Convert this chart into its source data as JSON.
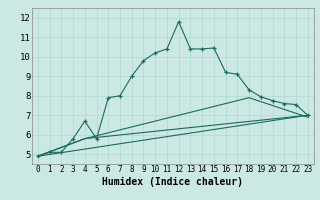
{
  "xlabel": "Humidex (Indice chaleur)",
  "bg_color": "#cce8e4",
  "grid_color": "#b0d8d0",
  "line_color": "#1a6b5a",
  "xlim": [
    -0.5,
    23.5
  ],
  "ylim": [
    4.5,
    12.5
  ],
  "xticks": [
    0,
    1,
    2,
    3,
    4,
    5,
    6,
    7,
    8,
    9,
    10,
    11,
    12,
    13,
    14,
    15,
    16,
    17,
    18,
    19,
    20,
    21,
    22,
    23
  ],
  "yticks": [
    5,
    6,
    7,
    8,
    9,
    10,
    11,
    12
  ],
  "series1": {
    "x": [
      0,
      1,
      2,
      3,
      4,
      5,
      6,
      7,
      8,
      9,
      10,
      11,
      12,
      13,
      14,
      15,
      16,
      17,
      18,
      19,
      20,
      21,
      22,
      23
    ],
    "y": [
      4.9,
      5.1,
      5.1,
      5.8,
      6.7,
      5.8,
      7.9,
      8.0,
      9.0,
      9.8,
      10.2,
      10.4,
      11.8,
      10.4,
      10.4,
      10.45,
      9.2,
      9.1,
      8.3,
      7.95,
      7.75,
      7.6,
      7.55,
      7.0
    ]
  },
  "series2": {
    "x": [
      0,
      23
    ],
    "y": [
      4.9,
      7.0
    ]
  },
  "series3": {
    "x": [
      0,
      4,
      23
    ],
    "y": [
      4.9,
      5.8,
      7.0
    ]
  },
  "series4": {
    "x": [
      0,
      4,
      18,
      23
    ],
    "y": [
      4.9,
      5.8,
      7.9,
      6.9
    ]
  }
}
